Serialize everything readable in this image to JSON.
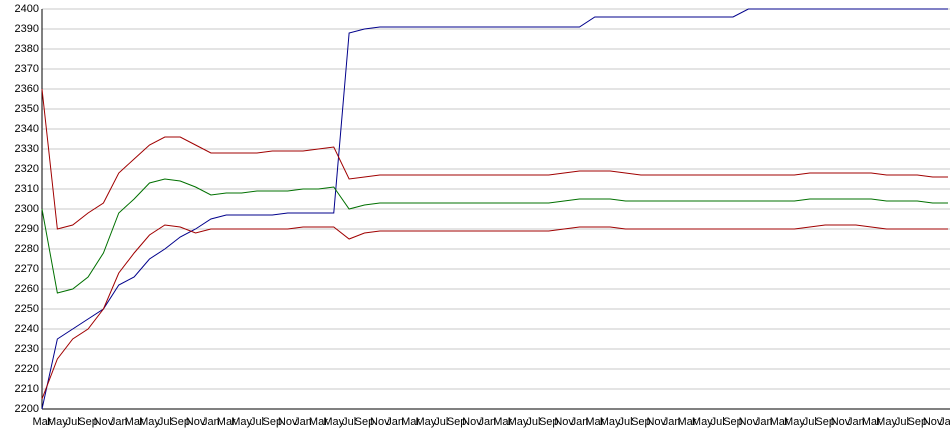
{
  "chart_data": {
    "type": "line",
    "categories": [
      "Mar",
      "May",
      "Jul",
      "Sep",
      "Nov",
      "Jan",
      "Mar",
      "May",
      "Jul",
      "Sep",
      "Nov",
      "Jan",
      "Mar",
      "May",
      "Jul",
      "Sep",
      "Nov",
      "Jan",
      "Mar",
      "May",
      "Jul",
      "Sep",
      "Nov",
      "Jan",
      "Mar",
      "May",
      "Jul",
      "Sep",
      "Nov",
      "Jan",
      "Mar",
      "May",
      "Jul",
      "Sep",
      "Nov",
      "Jan",
      "Mar",
      "May",
      "Jul",
      "Sep",
      "Nov",
      "Jan",
      "Mar",
      "May",
      "Jul",
      "Sep",
      "Nov",
      "Jan",
      "Mar",
      "May",
      "Jul",
      "Sep",
      "Nov",
      "Jan",
      "Mar",
      "May",
      "Jul",
      "Sep",
      "Nov",
      "Jan"
    ],
    "series": [
      {
        "color": "#00008b",
        "values": [
          2200,
          2235,
          2240,
          2245,
          2250,
          2262,
          2266,
          2275,
          2280,
          2286,
          2290,
          2295,
          2297,
          2297,
          2297,
          2297,
          2298,
          2298,
          2298,
          2298,
          2388,
          2390,
          2391,
          2391,
          2391,
          2391,
          2391,
          2391,
          2391,
          2391,
          2391,
          2391,
          2391,
          2391,
          2391,
          2391,
          2396,
          2396,
          2396,
          2396,
          2396,
          2396,
          2396,
          2396,
          2396,
          2396,
          2400,
          2400,
          2400,
          2400,
          2400,
          2400,
          2400,
          2400,
          2400,
          2400,
          2400,
          2400,
          2400,
          2400
        ]
      },
      {
        "color": "#a00000",
        "values": [
          2360,
          2290,
          2292,
          2298,
          2303,
          2318,
          2325,
          2332,
          2336,
          2336,
          2332,
          2328,
          2328,
          2328,
          2328,
          2329,
          2329,
          2329,
          2330,
          2331,
          2315,
          2316,
          2317,
          2317,
          2317,
          2317,
          2317,
          2317,
          2317,
          2317,
          2317,
          2317,
          2317,
          2317,
          2318,
          2319,
          2319,
          2319,
          2318,
          2317,
          2317,
          2317,
          2317,
          2317,
          2317,
          2317,
          2317,
          2317,
          2317,
          2317,
          2318,
          2318,
          2318,
          2318,
          2318,
          2317,
          2317,
          2317,
          2316,
          2316
        ]
      },
      {
        "color": "#007000",
        "values": [
          2300,
          2258,
          2260,
          2266,
          2278,
          2298,
          2305,
          2313,
          2315,
          2314,
          2311,
          2307,
          2308,
          2308,
          2309,
          2309,
          2309,
          2310,
          2310,
          2311,
          2300,
          2302,
          2303,
          2303,
          2303,
          2303,
          2303,
          2303,
          2303,
          2303,
          2303,
          2303,
          2303,
          2303,
          2304,
          2305,
          2305,
          2305,
          2304,
          2304,
          2304,
          2304,
          2304,
          2304,
          2304,
          2304,
          2304,
          2304,
          2304,
          2304,
          2305,
          2305,
          2305,
          2305,
          2305,
          2304,
          2304,
          2304,
          2303,
          2303
        ]
      },
      {
        "color": "#a00000",
        "values": [
          2205,
          2225,
          2235,
          2240,
          2250,
          2268,
          2278,
          2287,
          2292,
          2291,
          2288,
          2290,
          2290,
          2290,
          2290,
          2290,
          2290,
          2291,
          2291,
          2291,
          2285,
          2288,
          2289,
          2289,
          2289,
          2289,
          2289,
          2289,
          2289,
          2289,
          2289,
          2289,
          2289,
          2289,
          2290,
          2291,
          2291,
          2291,
          2290,
          2290,
          2290,
          2290,
          2290,
          2290,
          2290,
          2290,
          2290,
          2290,
          2290,
          2290,
          2291,
          2292,
          2292,
          2292,
          2291,
          2290,
          2290,
          2290,
          2290,
          2290
        ]
      }
    ],
    "ylim": [
      2200,
      2400
    ],
    "yticks": [
      2200,
      2210,
      2220,
      2230,
      2240,
      2250,
      2260,
      2270,
      2280,
      2290,
      2300,
      2310,
      2320,
      2330,
      2340,
      2350,
      2360,
      2370,
      2380,
      2390,
      2400
    ],
    "grid": true
  }
}
